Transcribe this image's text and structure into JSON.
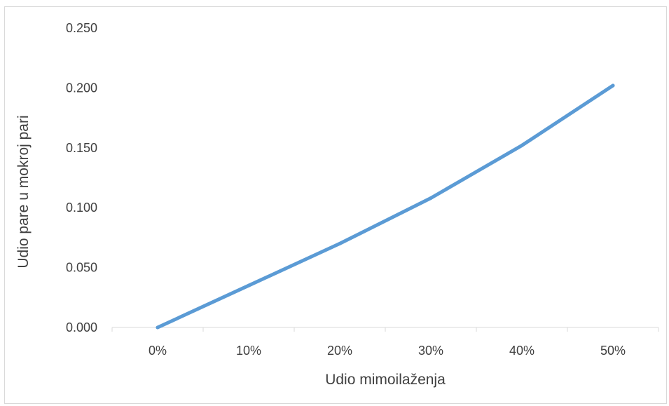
{
  "chart_data": {
    "type": "line",
    "title": "",
    "xlabel": "Udio mimoilaženja",
    "ylabel": "Udio pare u mokroj pari",
    "categories": [
      "0%",
      "10%",
      "20%",
      "30%",
      "40%",
      "50%"
    ],
    "series": [
      {
        "values": [
          0.0,
          0.035,
          0.07,
          0.108,
          0.152,
          0.202
        ]
      }
    ],
    "yticks": [
      "0.000",
      "0.050",
      "0.100",
      "0.150",
      "0.200",
      "0.250"
    ],
    "ylim": [
      0,
      0.25
    ],
    "grid": false,
    "legend": "none",
    "colors": {
      "line": "#5b9bd5",
      "axis": "#d9d9d9",
      "text": "#404040"
    }
  }
}
